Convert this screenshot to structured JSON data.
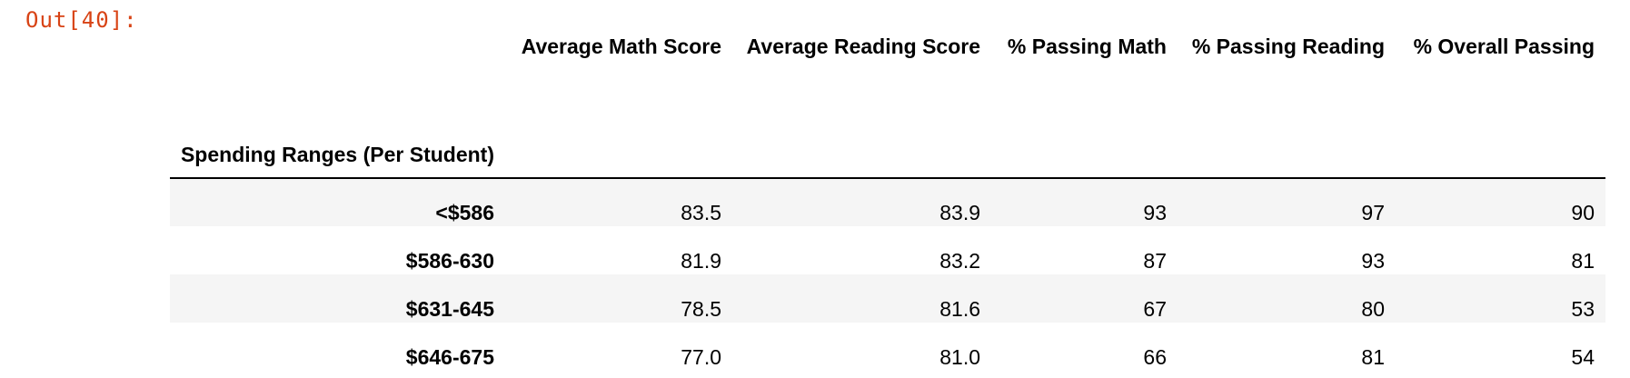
{
  "cell": {
    "prompt": "Out[40]:"
  },
  "table": {
    "columns": [
      "Average Math Score",
      "Average Reading Score",
      "% Passing Math",
      "% Passing Reading",
      "% Overall Passing"
    ],
    "index_name": "Spending Ranges (Per Student)",
    "rows": [
      {
        "index": "<$586",
        "values": [
          "83.5",
          "83.9",
          "93",
          "97",
          "90"
        ]
      },
      {
        "index": "$586-630",
        "values": [
          "81.9",
          "83.2",
          "87",
          "93",
          "81"
        ]
      },
      {
        "index": "$631-645",
        "values": [
          "78.5",
          "81.6",
          "67",
          "80",
          "53"
        ]
      },
      {
        "index": "$646-675",
        "values": [
          "77.0",
          "81.0",
          "66",
          "81",
          "54"
        ]
      }
    ]
  },
  "colors": {
    "prompt": "#d84315",
    "stripe": "#f5f5f5"
  }
}
